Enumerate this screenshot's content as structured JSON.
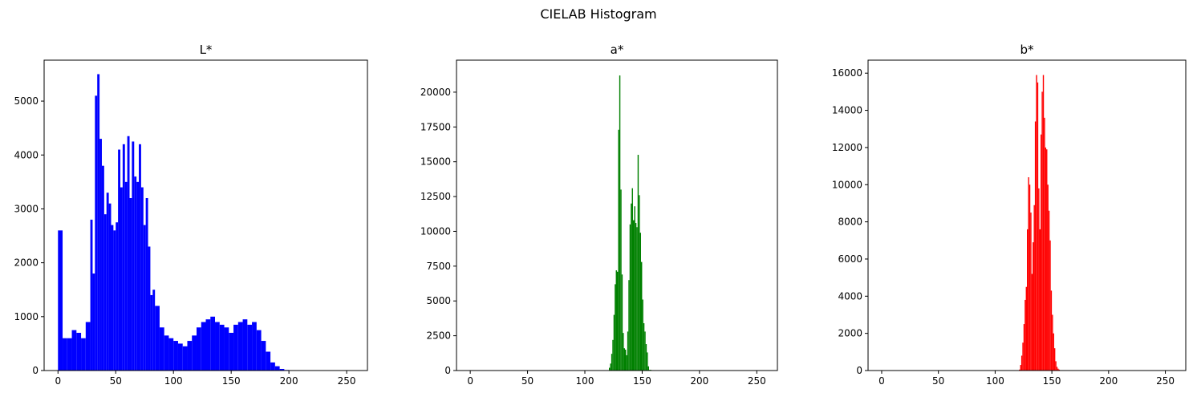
{
  "suptitle": "CIELAB Histogram",
  "chart_data": [
    {
      "type": "bar",
      "title": "L*",
      "color": "#0000ff",
      "xlim": [
        -12,
        268
      ],
      "ylim": [
        0,
        5760
      ],
      "xticks": [
        0,
        50,
        100,
        150,
        200,
        250
      ],
      "yticks": [
        0,
        1000,
        2000,
        3000,
        4000,
        5000
      ],
      "xticklabels": [
        "0",
        "50",
        "100",
        "150",
        "200",
        "250"
      ],
      "yticklabels": [
        "0",
        "1000",
        "2000",
        "3000",
        "4000",
        "5000"
      ],
      "bins": [
        0,
        4,
        8,
        12,
        16,
        20,
        24,
        28,
        30,
        32,
        34,
        36,
        38,
        40,
        42,
        44,
        46,
        48,
        50,
        52,
        54,
        56,
        58,
        60,
        62,
        64,
        66,
        68,
        70,
        72,
        74,
        76,
        78,
        80,
        82,
        84,
        88,
        92,
        96,
        100,
        104,
        108,
        112,
        116,
        120,
        124,
        128,
        132,
        136,
        140,
        144,
        148,
        152,
        156,
        160,
        164,
        168,
        172,
        176,
        180,
        184,
        188,
        192,
        196,
        200,
        210,
        220,
        230,
        240,
        250,
        255
      ],
      "values": [
        2600,
        600,
        600,
        750,
        700,
        600,
        900,
        2800,
        1800,
        5100,
        5500,
        4300,
        3800,
        2900,
        3300,
        3100,
        2700,
        2600,
        2750,
        4100,
        3400,
        4200,
        3500,
        4350,
        3200,
        4250,
        3600,
        3500,
        4200,
        3400,
        2700,
        3200,
        2300,
        1400,
        1500,
        1200,
        800,
        650,
        600,
        550,
        500,
        450,
        550,
        650,
        800,
        900,
        950,
        1000,
        900,
        850,
        800,
        700,
        850,
        900,
        950,
        850,
        900,
        750,
        550,
        350,
        150,
        80,
        30,
        10,
        5,
        0,
        0,
        0,
        0,
        0,
        0
      ]
    },
    {
      "type": "bar",
      "title": "a*",
      "color": "#008000",
      "xlim": [
        -12,
        268
      ],
      "ylim": [
        0,
        22300
      ],
      "xticks": [
        0,
        50,
        100,
        150,
        200,
        250
      ],
      "yticks": [
        0,
        2500,
        5000,
        7500,
        10000,
        12500,
        15000,
        17500,
        20000
      ],
      "xticklabels": [
        "0",
        "50",
        "100",
        "150",
        "200",
        "250"
      ],
      "yticklabels": [
        "0",
        "2500",
        "5000",
        "7500",
        "10000",
        "12500",
        "15000",
        "17500",
        "20000"
      ],
      "bins": [
        0,
        50,
        100,
        118,
        120,
        121,
        122,
        123,
        124,
        125,
        126,
        127,
        128,
        129,
        130,
        131,
        132,
        133,
        134,
        135,
        136,
        137,
        138,
        139,
        140,
        141,
        142,
        143,
        144,
        145,
        146,
        147,
        148,
        149,
        150,
        151,
        152,
        153,
        154,
        155,
        156,
        158,
        160,
        200,
        255
      ],
      "values": [
        0,
        0,
        0,
        0,
        30,
        200,
        500,
        1200,
        2200,
        4000,
        6200,
        7200,
        7100,
        17300,
        21200,
        13000,
        6900,
        2700,
        1600,
        1500,
        1100,
        2800,
        6500,
        10500,
        12000,
        13100,
        10800,
        11800,
        10600,
        10300,
        15500,
        12600,
        9900,
        7800,
        5100,
        3400,
        2800,
        1900,
        1300,
        300,
        50,
        0,
        0,
        0,
        0
      ]
    },
    {
      "type": "bar",
      "title": "b*",
      "color": "#ff0000",
      "xlim": [
        -12,
        268
      ],
      "ylim": [
        0,
        16700
      ],
      "xticks": [
        0,
        50,
        100,
        150,
        200,
        250
      ],
      "yticks": [
        0,
        2000,
        4000,
        6000,
        8000,
        10000,
        12000,
        14000,
        16000
      ],
      "xticklabels": [
        "0",
        "50",
        "100",
        "150",
        "200",
        "250"
      ],
      "yticklabels": [
        "0",
        "2000",
        "4000",
        "6000",
        "8000",
        "10000",
        "12000",
        "14000",
        "16000"
      ],
      "bins": [
        0,
        50,
        100,
        118,
        121,
        122,
        123,
        124,
        125,
        126,
        127,
        128,
        129,
        130,
        131,
        132,
        133,
        134,
        135,
        136,
        137,
        138,
        139,
        140,
        141,
        142,
        143,
        144,
        145,
        146,
        147,
        148,
        149,
        150,
        151,
        152,
        153,
        154,
        155,
        156,
        157,
        158,
        160,
        200,
        255
      ],
      "values": [
        0,
        0,
        0,
        0,
        50,
        300,
        800,
        1500,
        2500,
        3800,
        4500,
        7600,
        10400,
        10000,
        8500,
        5200,
        6900,
        8900,
        13400,
        15900,
        15500,
        9800,
        7600,
        12700,
        15000,
        15900,
        13600,
        12000,
        11900,
        10000,
        8600,
        7000,
        4300,
        3000,
        2000,
        1200,
        500,
        200,
        100,
        50,
        20,
        0,
        0,
        0,
        0
      ]
    }
  ]
}
